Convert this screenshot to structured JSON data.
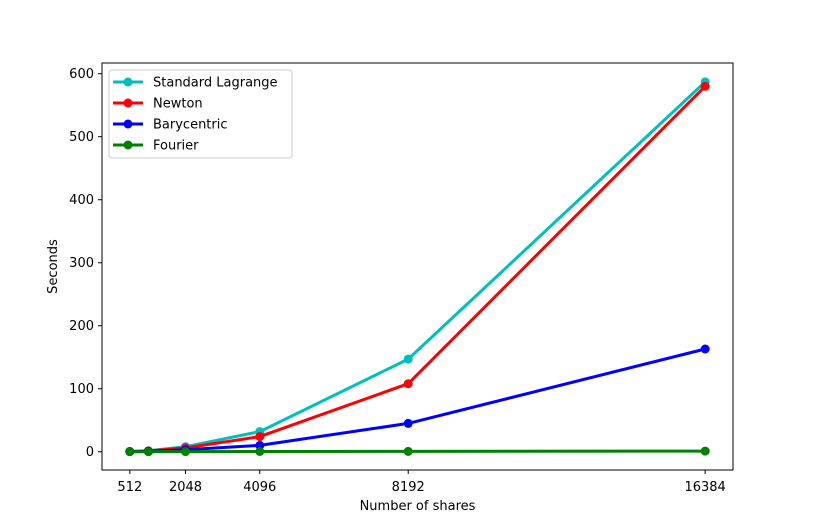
{
  "chart_data": {
    "type": "line",
    "title": "",
    "xlabel": "Number of shares",
    "ylabel": "Seconds",
    "x": [
      512,
      1024,
      2048,
      4096,
      8192,
      16384
    ],
    "xticks": [
      512,
      2048,
      4096,
      8192,
      16384
    ],
    "xtick_labels": [
      "512",
      "2048",
      "4096",
      "8192",
      "16384"
    ],
    "yticks": [
      0,
      100,
      200,
      300,
      400,
      500,
      600
    ],
    "ytick_labels": [
      "0",
      "100",
      "200",
      "300",
      "400",
      "500",
      "600"
    ],
    "xlim": [
      -256,
      17152
    ],
    "ylim": [
      -29,
      617
    ],
    "grid": false,
    "legend_position": "top-left",
    "series": [
      {
        "name": "Standard Lagrange",
        "color": "#00bfbf",
        "values": [
          0.3,
          1.5,
          8,
          32,
          147,
          587
        ]
      },
      {
        "name": "Newton",
        "color": "#ff0000",
        "values": [
          0.3,
          1.2,
          6,
          24,
          108,
          580
        ]
      },
      {
        "name": "Barycentric",
        "color": "#0000ff",
        "values": [
          0.2,
          0.8,
          3,
          10,
          45,
          163
        ]
      },
      {
        "name": "Fourier",
        "color": "#008000",
        "values": [
          0.05,
          0.1,
          0.2,
          0.3,
          0.5,
          1.0
        ]
      }
    ]
  }
}
